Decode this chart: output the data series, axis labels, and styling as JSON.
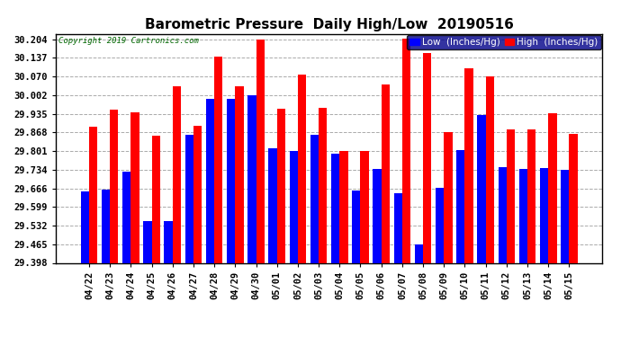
{
  "title": "Barometric Pressure  Daily High/Low  20190516",
  "copyright": "Copyright 2019 Cartronics.com",
  "legend_low": "Low  (Inches/Hg)",
  "legend_high": "High  (Inches/Hg)",
  "dates": [
    "04/22",
    "04/23",
    "04/24",
    "04/25",
    "04/26",
    "04/27",
    "04/28",
    "04/29",
    "04/30",
    "05/01",
    "05/02",
    "05/03",
    "05/04",
    "05/05",
    "05/06",
    "05/07",
    "05/08",
    "05/09",
    "05/10",
    "05/11",
    "05/12",
    "05/13",
    "05/14",
    "05/15"
  ],
  "low_values": [
    29.655,
    29.663,
    29.726,
    29.548,
    29.549,
    29.861,
    29.988,
    29.99,
    30.002,
    29.81,
    29.802,
    29.861,
    29.793,
    29.66,
    29.737,
    29.648,
    29.466,
    29.667,
    29.804,
    29.93,
    29.743,
    29.736,
    29.74,
    29.734
  ],
  "high_values": [
    29.89,
    29.95,
    29.94,
    29.855,
    30.036,
    29.892,
    30.143,
    30.036,
    30.203,
    29.952,
    30.075,
    29.957,
    29.8,
    29.8,
    30.04,
    30.207,
    30.155,
    29.87,
    30.1,
    30.07,
    29.878,
    29.88,
    29.938,
    29.862
  ],
  "yticks": [
    29.398,
    29.465,
    29.532,
    29.599,
    29.666,
    29.734,
    29.801,
    29.868,
    29.935,
    30.002,
    30.07,
    30.137,
    30.204
  ],
  "ylim_min": 29.398,
  "ylim_max": 30.224,
  "bar_color_low": "#0000FF",
  "bar_color_high": "#FF0000",
  "bg_color": "#FFFFFF",
  "grid_color": "#AAAAAA",
  "title_fontsize": 11,
  "tick_fontsize": 7.5,
  "legend_fontsize": 7.5
}
